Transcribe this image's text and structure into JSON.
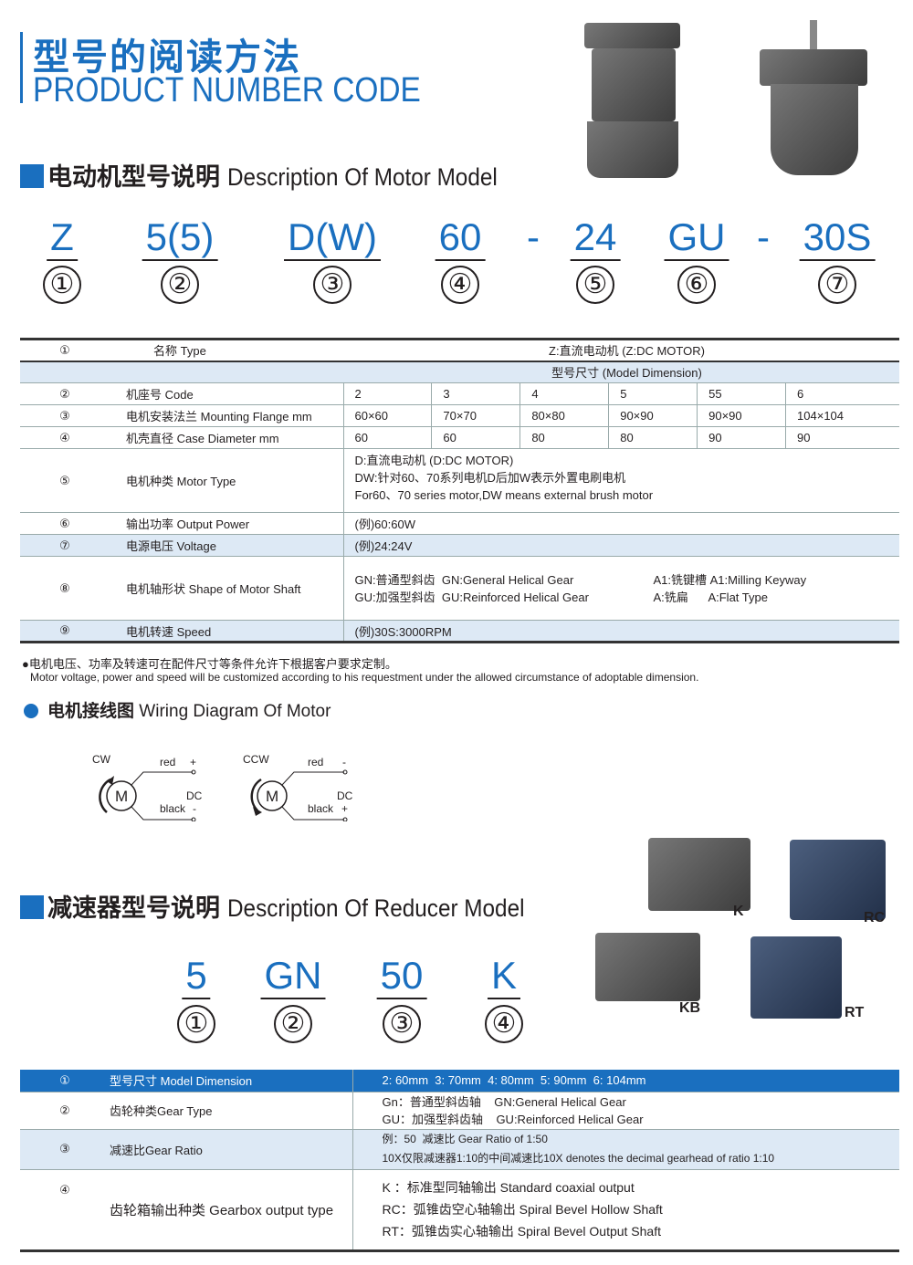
{
  "header": {
    "title_cn": "型号的阅读方法",
    "title_en": "PRODUCT NUMBER CODE"
  },
  "motor_section": {
    "title_cn": "电动机型号说明",
    "title_en": "Description Of Motor Model",
    "code": [
      "Z",
      "5(5)",
      "D(W)",
      "60",
      "-",
      "24",
      "GU",
      "-",
      "30S"
    ],
    "numbers": [
      "①",
      "②",
      "③",
      "④",
      "⑤",
      "⑥",
      "⑦"
    ]
  },
  "motor_table": {
    "r1": {
      "n": "①",
      "name": "名称 Type",
      "value": "Z:直流电动机 (Z:DC MOTOR)"
    },
    "dim_header": "型号尺寸 (Model Dimension)",
    "r2": {
      "n": "②",
      "name": "机座号 Code",
      "values": [
        "2",
        "3",
        "4",
        "5",
        "55",
        "6"
      ]
    },
    "r3": {
      "n": "③",
      "name": "电机安装法兰 Mounting Flange mm",
      "values": [
        "60×60",
        "70×70",
        "80×80",
        "90×90",
        "90×90",
        "104×104"
      ]
    },
    "r4": {
      "n": "④",
      "name": "机壳直径 Case Diameter mm",
      "values": [
        "60",
        "60",
        "80",
        "80",
        "90",
        "90"
      ]
    },
    "r5": {
      "n": "⑤",
      "name": "电机种类 Motor Type",
      "lines": [
        "D:直流电动机 (D:DC MOTOR)",
        "DW:针对60、70系列电机D后加W表示外置电刷电机",
        "For60、70 series motor,DW means external brush motor"
      ]
    },
    "r6": {
      "n": "⑥",
      "name": "输出功率 Output Power",
      "value": "(例)60:60W"
    },
    "r7": {
      "n": "⑦",
      "name": "电源电压 Voltage",
      "value": "(例)24:24V"
    },
    "r8": {
      "n": "⑧",
      "name": "电机轴形状 Shape of Motor Shaft",
      "a": "GN:普通型斜齿  GN:General Helical Gear",
      "b": "GU:加强型斜齿  GU:Reinforced Helical Gear",
      "c": "A1:铣键槽 A1:Milling Keyway",
      "d": "A:铣扁      A:Flat Type"
    },
    "r9": {
      "n": "⑨",
      "name": "电机转速 Speed",
      "value": "(例)30S:3000RPM"
    }
  },
  "notes": {
    "cn": "●电机电压、功率及转速可在配件尺寸等条件允许下根据客户要求定制。",
    "en": "Motor voltage, power and speed will be customized according to his requestment under the allowed circumstance of adoptable dimension."
  },
  "wiring": {
    "title_cn": "电机接线图",
    "title_en": "Wiring Diagram Of Motor",
    "cw": {
      "dir": "CW",
      "motor": "M",
      "top": "red",
      "top_sign": "+",
      "dc": "DC",
      "bottom": "black",
      "bottom_sign": "-"
    },
    "ccw": {
      "dir": "CCW",
      "motor": "M",
      "top": "red",
      "top_sign": "-",
      "dc": "DC",
      "bottom": "black",
      "bottom_sign": "+"
    }
  },
  "reducer_section": {
    "title_cn": "减速器型号说明",
    "title_en": "Description Of Reducer Model",
    "code": [
      "5",
      "GN",
      "50",
      "K"
    ],
    "numbers": [
      "①",
      "②",
      "③",
      "④"
    ],
    "image_labels": [
      "K",
      "RC",
      "KB",
      "RT"
    ]
  },
  "reducer_table": {
    "r1": {
      "n": "①",
      "name": "型号尺寸 Model Dimension",
      "value": "2: 60mm  3: 70mm  4: 80mm  5: 90mm  6: 104mm"
    },
    "r2": {
      "n": "②",
      "name": "齿轮种类Gear Type",
      "a": "Gn：普通型斜齿轴    GN:General Helical Gear",
      "b": "GU：加强型斜齿轴    GU:Reinforced Helical Gear"
    },
    "r3": {
      "n": "③",
      "name": "减速比Gear Ratio",
      "a": "例：50  减速比 Gear Ratio of 1:50",
      "b": "10X仅限减速器1:10的中间减速比10X denotes the decimal gearhead of ratio 1:10"
    },
    "r4": {
      "n": "④",
      "name": "齿轮箱输出种类 Gearbox output type",
      "a": "K ：标准型同轴输出 Standard coaxial output",
      "b": "RC：弧锥齿空心轴输出 Spiral Bevel Hollow Shaft",
      "c": "RT：弧锥齿实心轴输出 Spiral Bevel Output Shaft"
    }
  },
  "colors": {
    "accent": "#1a6fbf",
    "row_shade": "#dde9f5"
  }
}
